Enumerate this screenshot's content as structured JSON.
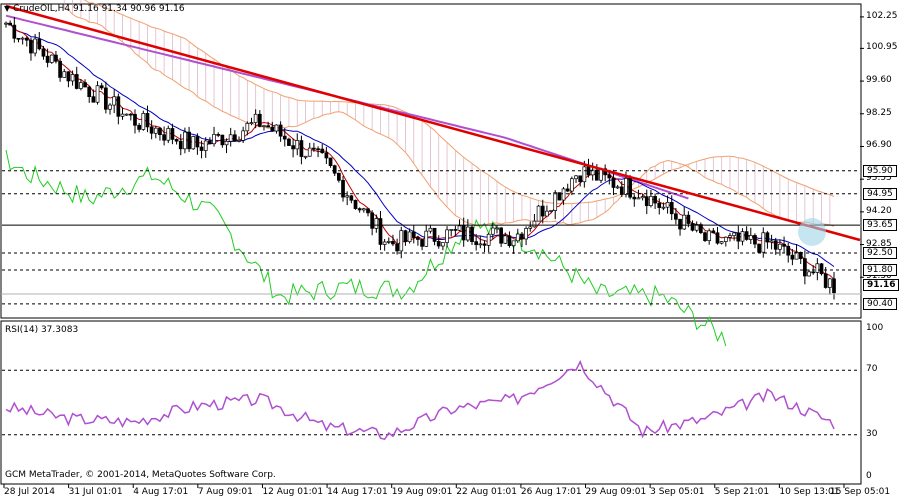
{
  "header": {
    "symbol_line": "CrudeOIL,H4  91.16 91.34 90.96 91.16"
  },
  "rsi": {
    "label": "RSI(14) 37.3083",
    "levels": [
      70,
      30
    ],
    "axis_labels": [
      "100",
      "70",
      "30",
      "0"
    ]
  },
  "copyright": "GCM MetaTrader, © 2001-2014, MetaQuotes Software Corp.",
  "price_axis": {
    "labels": [
      "102.25",
      "100.95",
      "99.60",
      "98.25",
      "96.90",
      "95.55",
      "94.20",
      "92.85",
      "91.50"
    ]
  },
  "horizontal_levels": [
    {
      "value": 95.9,
      "label": "95.90"
    },
    {
      "value": 94.95,
      "label": "94.95"
    },
    {
      "value": 93.65,
      "label": "93.65"
    },
    {
      "value": 92.5,
      "label": "92.50"
    },
    {
      "value": 91.8,
      "label": "91.80"
    },
    {
      "value": 90.4,
      "label": "90.40"
    }
  ],
  "current_price": {
    "value": 91.16,
    "label": "91.16"
  },
  "time_axis": {
    "labels": [
      "28 Jul 2014",
      "31 Jul 01:01",
      "4 Aug 17:01",
      "7 Aug 09:01",
      "12 Aug 01:01",
      "14 Aug 17:01",
      "19 Aug 09:01",
      "22 Aug 01:01",
      "26 Aug 17:01",
      "29 Aug 09:01",
      "3 Sep 05:01",
      "5 Sep 21:01",
      "10 Sep 13:01",
      "15 Sep 05:01"
    ]
  },
  "colors": {
    "trendline": "#e00000",
    "ma_long": "#b050d0",
    "kijun": "#0000c0",
    "tenkan": "#c00000",
    "chikou": "#22cc22",
    "cloud": "#cc88aa",
    "cloud_edge": "#f0a070",
    "rsi_line": "#b050d0",
    "levels": "#000000"
  },
  "chart_data": {
    "type": "line",
    "title": "CrudeOIL,H4",
    "x": [
      "28 Jul 2014",
      "31 Jul 01:01",
      "4 Aug 17:01",
      "7 Aug 09:01",
      "12 Aug 01:01",
      "14 Aug 17:01",
      "19 Aug 09:01",
      "22 Aug 01:01",
      "26 Aug 17:01",
      "29 Aug 09:01",
      "3 Sep 05:01",
      "5 Sep 21:01",
      "10 Sep 13:01",
      "15 Sep 05:01"
    ],
    "ylim": [
      89.9,
      102.7
    ],
    "series": [
      {
        "name": "",
        "values": [
          102.0,
          99.8,
          98.0,
          96.9,
          97.9,
          96.2,
          92.9,
          93.3,
          93.2,
          95.9,
          95.0,
          93.0,
          92.9,
          91.16
        ]
      }
    ],
    "rsi_values": [
      47,
      40,
      38,
      48,
      52,
      35,
      30,
      46,
      52,
      75,
      32,
      40,
      55,
      37.3
    ]
  }
}
